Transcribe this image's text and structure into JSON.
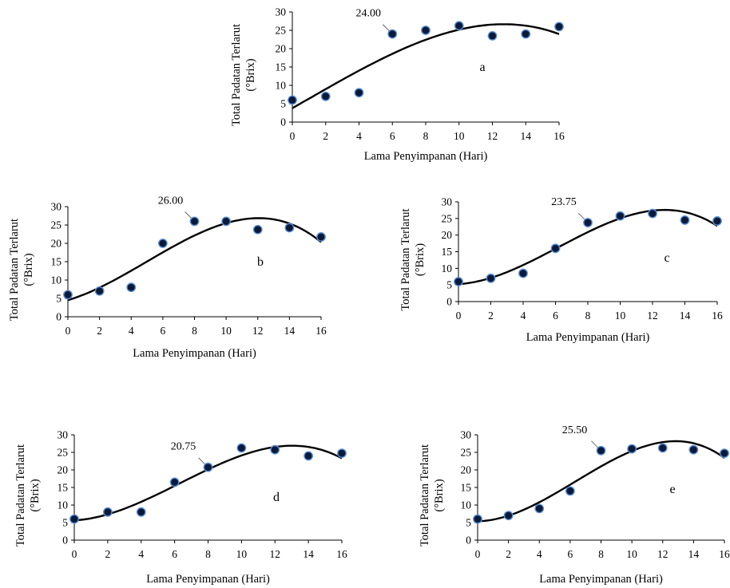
{
  "chart_data": [
    {
      "type": "scatter",
      "panel_label": "a",
      "xlabel": "Lama Penyimpanan (Hari)",
      "ylabel_line1": "Total Padatan Terlarut",
      "ylabel_line2": "(°Brix)",
      "xlim": [
        0,
        16
      ],
      "ylim": [
        0,
        30
      ],
      "xticks": [
        "0",
        "2",
        "4",
        "6",
        "8",
        "10",
        "12",
        "14",
        "16"
      ],
      "yticks": [
        "0",
        "5",
        "10",
        "15",
        "20",
        "25",
        "30"
      ],
      "x": [
        0,
        2,
        4,
        6,
        8,
        10,
        12,
        14,
        16
      ],
      "y": [
        6.0,
        7.0,
        8.0,
        24.0,
        25.0,
        26.25,
        23.5,
        24.0,
        26.0
      ],
      "trendline": {
        "type": "polynomial"
      },
      "annotation": {
        "text": "24.00",
        "x": 6,
        "y": 24.0
      }
    },
    {
      "type": "scatter",
      "panel_label": "b",
      "xlabel": "Lama Penyimpanan (Hari)",
      "ylabel_line1": "Total Padatan Terlarut",
      "ylabel_line2": "(°Brix)",
      "xlim": [
        0,
        16
      ],
      "ylim": [
        0,
        30
      ],
      "xticks": [
        "0",
        "2",
        "4",
        "6",
        "8",
        "10",
        "12",
        "14",
        "16"
      ],
      "yticks": [
        "0",
        "5",
        "10",
        "15",
        "20",
        "25",
        "30"
      ],
      "x": [
        0,
        2,
        4,
        6,
        8,
        10,
        12,
        14,
        16
      ],
      "y": [
        6.0,
        7.0,
        8.0,
        20.0,
        26.0,
        26.0,
        23.75,
        24.25,
        21.75
      ],
      "trendline": {
        "type": "polynomial"
      },
      "annotation": {
        "text": "26.00",
        "x": 8,
        "y": 26.0
      }
    },
    {
      "type": "scatter",
      "panel_label": "c",
      "xlabel": "Lama Penyimpanan (Hari)",
      "ylabel_line1": "Total Padatan Terlarut",
      "ylabel_line2": "(°Brix)",
      "xlim": [
        0,
        16
      ],
      "ylim": [
        0,
        30
      ],
      "xticks": [
        "0",
        "2",
        "4",
        "6",
        "8",
        "10",
        "12",
        "14",
        "16"
      ],
      "yticks": [
        "0",
        "5",
        "10",
        "15",
        "20",
        "25",
        "30"
      ],
      "x": [
        0,
        2,
        4,
        6,
        8,
        10,
        12,
        14,
        16
      ],
      "y": [
        6.0,
        7.0,
        8.5,
        16.0,
        23.75,
        25.75,
        26.5,
        24.5,
        24.25
      ],
      "trendline": {
        "type": "polynomial"
      },
      "annotation": {
        "text": "23.75",
        "x": 8,
        "y": 23.75
      }
    },
    {
      "type": "scatter",
      "panel_label": "d",
      "xlabel": "Lama Penyimpanan (Hari)",
      "ylabel_line1": "Total Padatan Terlarut",
      "ylabel_line2": "(°Brix)",
      "xlim": [
        0,
        16
      ],
      "ylim": [
        0,
        30
      ],
      "xticks": [
        "0",
        "2",
        "4",
        "6",
        "8",
        "10",
        "12",
        "14",
        "16"
      ],
      "yticks": [
        "0",
        "5",
        "10",
        "15",
        "20",
        "25",
        "30"
      ],
      "x": [
        0,
        2,
        4,
        6,
        8,
        10,
        12,
        14,
        16
      ],
      "y": [
        6.0,
        8.0,
        8.0,
        16.5,
        20.75,
        26.25,
        25.75,
        24.0,
        24.75
      ],
      "trendline": {
        "type": "polynomial"
      },
      "annotation": {
        "text": "20.75",
        "x": 8,
        "y": 20.75
      }
    },
    {
      "type": "scatter",
      "panel_label": "e",
      "xlabel": "Lama Penyimpanan (Hari)",
      "ylabel_line1": "Total Padatan Terlarut",
      "ylabel_line2": "(°Brix)",
      "xlim": [
        0,
        16
      ],
      "ylim": [
        0,
        30
      ],
      "xticks": [
        "0",
        "2",
        "4",
        "6",
        "8",
        "10",
        "12",
        "14",
        "16"
      ],
      "yticks": [
        "0",
        "5",
        "10",
        "15",
        "20",
        "25",
        "30"
      ],
      "x": [
        0,
        2,
        4,
        6,
        8,
        10,
        12,
        14,
        16
      ],
      "y": [
        6.0,
        7.0,
        9.0,
        14.0,
        25.5,
        26.0,
        26.25,
        25.75,
        24.75
      ],
      "trendline": {
        "type": "polynomial"
      },
      "annotation": {
        "text": "25.50",
        "x": 8,
        "y": 25.5
      }
    }
  ]
}
